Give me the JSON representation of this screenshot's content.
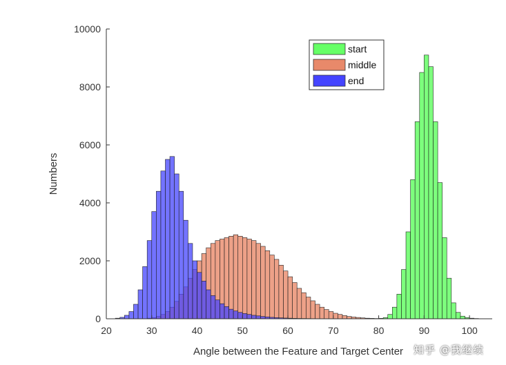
{
  "chart_data": {
    "type": "histogram",
    "title": "",
    "xlabel": "Angle between the Feature and Target Center",
    "ylabel": "Numbers",
    "xlim": [
      20,
      105
    ],
    "ylim": [
      0,
      10000
    ],
    "x_ticks": [
      20,
      30,
      40,
      50,
      60,
      70,
      80,
      90,
      100
    ],
    "y_ticks": [
      0,
      2000,
      4000,
      6000,
      8000,
      10000
    ],
    "bin_width": 1,
    "legend_position": "top-right",
    "grid": false,
    "series": [
      {
        "name": "start",
        "color": "#66ff66",
        "bin_starts": [
          79,
          80,
          81,
          82,
          83,
          84,
          85,
          86,
          87,
          88,
          89,
          90,
          91,
          92,
          93,
          94,
          95,
          96,
          97,
          98,
          99,
          100,
          101
        ],
        "values": [
          5,
          15,
          40,
          150,
          400,
          850,
          1700,
          3000,
          4800,
          6800,
          8500,
          9100,
          8700,
          6800,
          4700,
          2800,
          1400,
          550,
          220,
          90,
          40,
          20,
          10
        ]
      },
      {
        "name": "middle",
        "color": "#e8896a",
        "bin_starts": [
          29,
          30,
          31,
          32,
          33,
          34,
          35,
          36,
          37,
          38,
          39,
          40,
          41,
          42,
          43,
          44,
          45,
          46,
          47,
          48,
          49,
          50,
          51,
          52,
          53,
          54,
          55,
          56,
          57,
          58,
          59,
          60,
          61,
          62,
          63,
          64,
          65,
          66,
          67,
          68,
          69,
          70,
          71,
          72,
          73,
          74,
          75,
          76,
          77,
          78,
          79,
          80
        ],
        "values": [
          20,
          40,
          80,
          150,
          250,
          400,
          600,
          850,
          1100,
          1400,
          1700,
          2000,
          2250,
          2450,
          2600,
          2700,
          2750,
          2800,
          2850,
          2900,
          2850,
          2800,
          2750,
          2700,
          2600,
          2500,
          2350,
          2200,
          2050,
          1850,
          1650,
          1450,
          1250,
          1050,
          900,
          750,
          620,
          500,
          400,
          320,
          250,
          190,
          150,
          110,
          80,
          60,
          45,
          30,
          20,
          15,
          10,
          5
        ]
      },
      {
        "name": "end",
        "color": "#4444ff",
        "bin_starts": [
          22,
          23,
          24,
          25,
          26,
          27,
          28,
          29,
          30,
          31,
          32,
          33,
          34,
          35,
          36,
          37,
          38,
          39,
          40,
          41,
          42,
          43,
          44,
          45,
          46,
          47,
          48,
          49,
          50,
          51,
          52,
          53,
          54,
          55,
          56,
          57,
          58,
          59,
          60,
          61,
          62,
          63,
          64,
          65,
          66,
          67,
          68,
          69,
          70,
          71
        ],
        "values": [
          20,
          50,
          120,
          250,
          500,
          1000,
          1800,
          2700,
          3700,
          4400,
          5100,
          5500,
          5600,
          5000,
          4400,
          3400,
          2600,
          2000,
          1600,
          1300,
          1000,
          800,
          650,
          520,
          420,
          330,
          270,
          220,
          180,
          150,
          120,
          100,
          80,
          65,
          50,
          40,
          32,
          25,
          20,
          15,
          12,
          10,
          8,
          6,
          5,
          4,
          3,
          2,
          1,
          1
        ]
      }
    ]
  },
  "watermark": "知乎 @我继续"
}
